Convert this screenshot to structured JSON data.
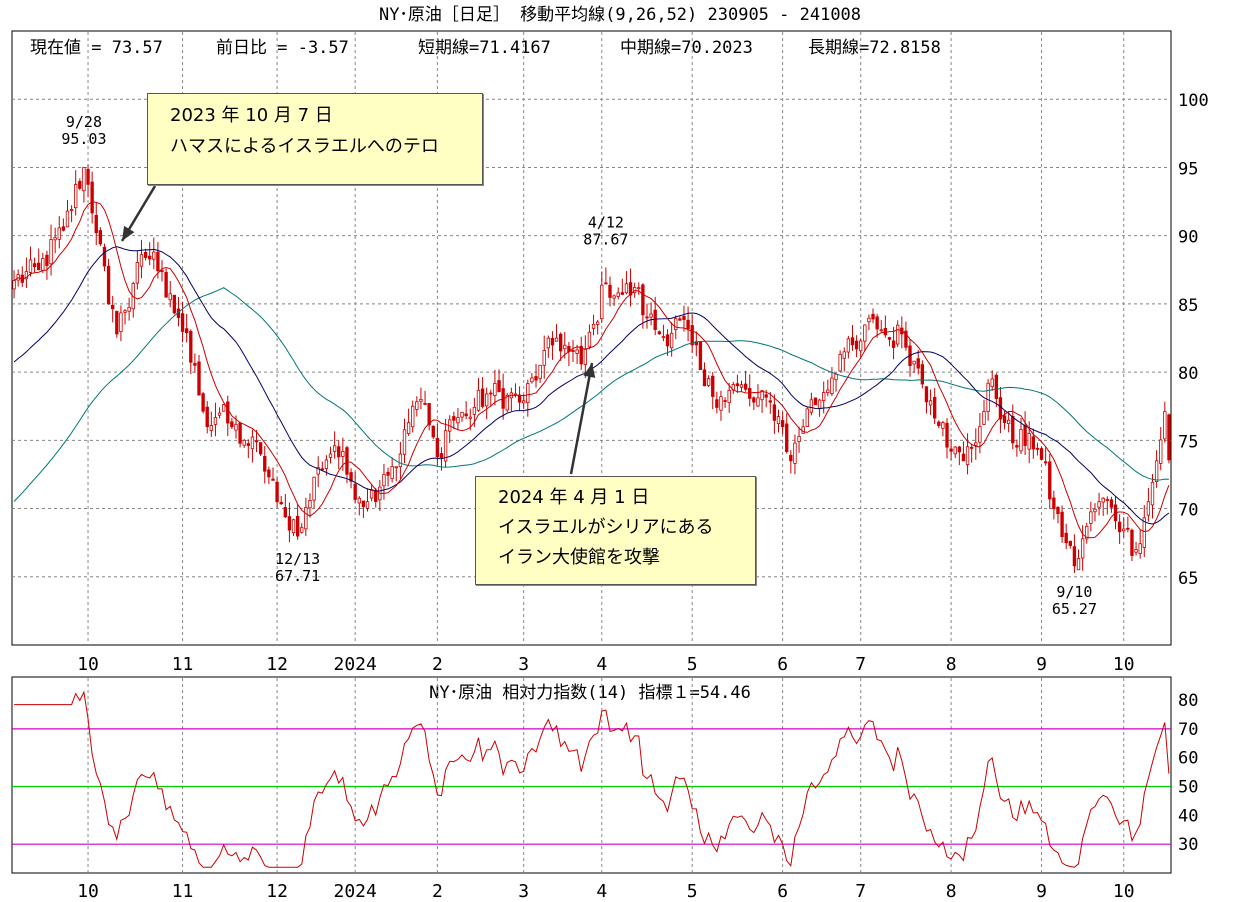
{
  "main_title": "NY･原油［日足］ 移動平均線(9,26,52)  230905 - 241008",
  "info_bar": {
    "current": "現在値 = 73.57",
    "change": "前日比 = -3.57",
    "short": "短期線=71.4167",
    "mid": "中期線=70.2023",
    "long": "長期線=72.8158"
  },
  "rsi_title": "NY･原油    相対力指数(14) 指標１=54.46",
  "annotations": [
    {
      "line1": "2023 年 10 月 7 日",
      "line2": "ハマスによるイスラエルへのテロ"
    },
    {
      "line1": "2024 年 4 月 1 日",
      "line2": "イスラエルがシリアにある",
      "line3": "イラン大使館を攻撃"
    }
  ],
  "peak_labels": [
    {
      "date": "9/28",
      "value": "95.03"
    },
    {
      "date": "12/13",
      "value": "67.71"
    },
    {
      "date": "4/12",
      "value": "87.67"
    },
    {
      "date": "9/10",
      "value": "65.27"
    }
  ],
  "colors": {
    "candle": "#cc0000",
    "ma_short": "#cc0000",
    "ma_mid": "#000066",
    "ma_long": "#007777",
    "rsi_line": "#cc0000",
    "rsi_band": "#cc00cc",
    "rsi_mid": "#00cc00"
  },
  "chart_data": [
    {
      "type": "candlestick",
      "title": "NY･原油［日足］ 移動平均線(9,26,52)  230905 - 241008",
      "ylim": [
        60,
        105
      ],
      "y_ticks": [
        65,
        70,
        75,
        80,
        85,
        90,
        95,
        100
      ],
      "x_tick_labels": [
        "10",
        "11",
        "12",
        "2024",
        "2",
        "3",
        "4",
        "5",
        "6",
        "7",
        "8",
        "9",
        "10"
      ],
      "trading_days": 282,
      "month_start_index": [
        18,
        41,
        64,
        83,
        103,
        124,
        143,
        165,
        187,
        206,
        228,
        250,
        270
      ],
      "anchors": [
        {
          "i": 0,
          "close": 86.7
        },
        {
          "i": 6,
          "close": 87.5
        },
        {
          "i": 12,
          "close": 90.4
        },
        {
          "i": 17,
          "close": 95.0
        },
        {
          "i": 21,
          "close": 89.4
        },
        {
          "i": 23,
          "close": 85.0
        },
        {
          "i": 25,
          "close": 82.8
        },
        {
          "i": 27,
          "close": 84.5
        },
        {
          "i": 31,
          "close": 88.6
        },
        {
          "i": 34,
          "close": 88.8
        },
        {
          "i": 37,
          "close": 85.5
        },
        {
          "i": 40,
          "close": 84.0
        },
        {
          "i": 44,
          "close": 80.5
        },
        {
          "i": 47,
          "close": 76.0
        },
        {
          "i": 50,
          "close": 77.0
        },
        {
          "i": 53,
          "close": 76.0
        },
        {
          "i": 56,
          "close": 75.0
        },
        {
          "i": 60,
          "close": 74.0
        },
        {
          "i": 64,
          "close": 70.5
        },
        {
          "i": 66,
          "close": 69.4
        },
        {
          "i": 70,
          "close": 68.6
        },
        {
          "i": 74,
          "close": 73.0
        },
        {
          "i": 78,
          "close": 74.6
        },
        {
          "i": 82,
          "close": 72.0
        },
        {
          "i": 86,
          "close": 70.5
        },
        {
          "i": 90,
          "close": 72.5
        },
        {
          "i": 94,
          "close": 74.0
        },
        {
          "i": 97,
          "close": 77.5
        },
        {
          "i": 99,
          "close": 78.0
        },
        {
          "i": 103,
          "close": 73.8
        },
        {
          "i": 106,
          "close": 76.5
        },
        {
          "i": 110,
          "close": 76.8
        },
        {
          "i": 115,
          "close": 78.4
        },
        {
          "i": 120,
          "close": 78.3
        },
        {
          "i": 124,
          "close": 77.9
        },
        {
          "i": 128,
          "close": 80.5
        },
        {
          "i": 132,
          "close": 82.5
        },
        {
          "i": 135,
          "close": 81.5
        },
        {
          "i": 138,
          "close": 80.6
        },
        {
          "i": 141,
          "close": 83.5
        },
        {
          "i": 144,
          "close": 86.5
        },
        {
          "i": 148,
          "close": 85.7
        },
        {
          "i": 151,
          "close": 86.2
        },
        {
          "i": 154,
          "close": 84.0
        },
        {
          "i": 158,
          "close": 82.6
        },
        {
          "i": 162,
          "close": 83.8
        },
        {
          "i": 165,
          "close": 82.0
        },
        {
          "i": 168,
          "close": 79.0
        },
        {
          "i": 172,
          "close": 78.2
        },
        {
          "i": 176,
          "close": 79.0
        },
        {
          "i": 180,
          "close": 77.8
        },
        {
          "i": 184,
          "close": 77.8
        },
        {
          "i": 187,
          "close": 76.0
        },
        {
          "i": 189,
          "close": 73.5
        },
        {
          "i": 193,
          "close": 77.3
        },
        {
          "i": 197,
          "close": 78.5
        },
        {
          "i": 201,
          "close": 81.3
        },
        {
          "i": 205,
          "close": 81.7
        },
        {
          "i": 209,
          "close": 83.9
        },
        {
          "i": 213,
          "close": 82.4
        },
        {
          "i": 216,
          "close": 82.8
        },
        {
          "i": 219,
          "close": 80.8
        },
        {
          "i": 223,
          "close": 77.9
        },
        {
          "i": 226,
          "close": 76.3
        },
        {
          "i": 228,
          "close": 74.2
        },
        {
          "i": 231,
          "close": 73.5
        },
        {
          "i": 235,
          "close": 76.0
        },
        {
          "i": 238,
          "close": 79.5
        },
        {
          "i": 241,
          "close": 76.3
        },
        {
          "i": 244,
          "close": 74.5
        },
        {
          "i": 247,
          "close": 75.5
        },
        {
          "i": 250,
          "close": 73.6
        },
        {
          "i": 253,
          "close": 70.0
        },
        {
          "i": 256,
          "close": 67.5
        },
        {
          "i": 258,
          "close": 65.8
        },
        {
          "i": 261,
          "close": 68.7
        },
        {
          "i": 264,
          "close": 70.5
        },
        {
          "i": 267,
          "close": 70.1
        },
        {
          "i": 270,
          "close": 68.5
        },
        {
          "i": 273,
          "close": 67.0
        },
        {
          "i": 276,
          "close": 70.5
        },
        {
          "i": 278,
          "close": 73.5
        },
        {
          "i": 280,
          "close": 77.1
        },
        {
          "i": 281,
          "close": 73.57
        }
      ],
      "ma_periods": [
        9,
        26,
        52
      ],
      "ma_long_start": 70.2,
      "last_values": {
        "close": 73.57,
        "change": -3.57,
        "ma9": 71.4167,
        "ma26": 70.2023,
        "ma52": 72.8158
      },
      "extremes": [
        {
          "date": "9/28",
          "value": 95.03,
          "kind": "high"
        },
        {
          "date": "12/13",
          "value": 67.71,
          "kind": "low"
        },
        {
          "date": "4/12",
          "value": 87.67,
          "kind": "high"
        },
        {
          "date": "9/10",
          "value": 65.27,
          "kind": "low"
        }
      ],
      "grid": true
    },
    {
      "type": "line",
      "title": "NY･原油    相対力指数(14) 指標１=54.46",
      "ylim": [
        20,
        88
      ],
      "y_ticks": [
        30,
        40,
        50,
        60,
        70,
        80
      ],
      "reference_lines": [
        30,
        50,
        70
      ],
      "last_value": 54.46,
      "x_tick_labels": [
        "10",
        "11",
        "12",
        "2024",
        "2",
        "3",
        "4",
        "5",
        "6",
        "7",
        "8",
        "9",
        "10"
      ],
      "grid": true
    }
  ]
}
